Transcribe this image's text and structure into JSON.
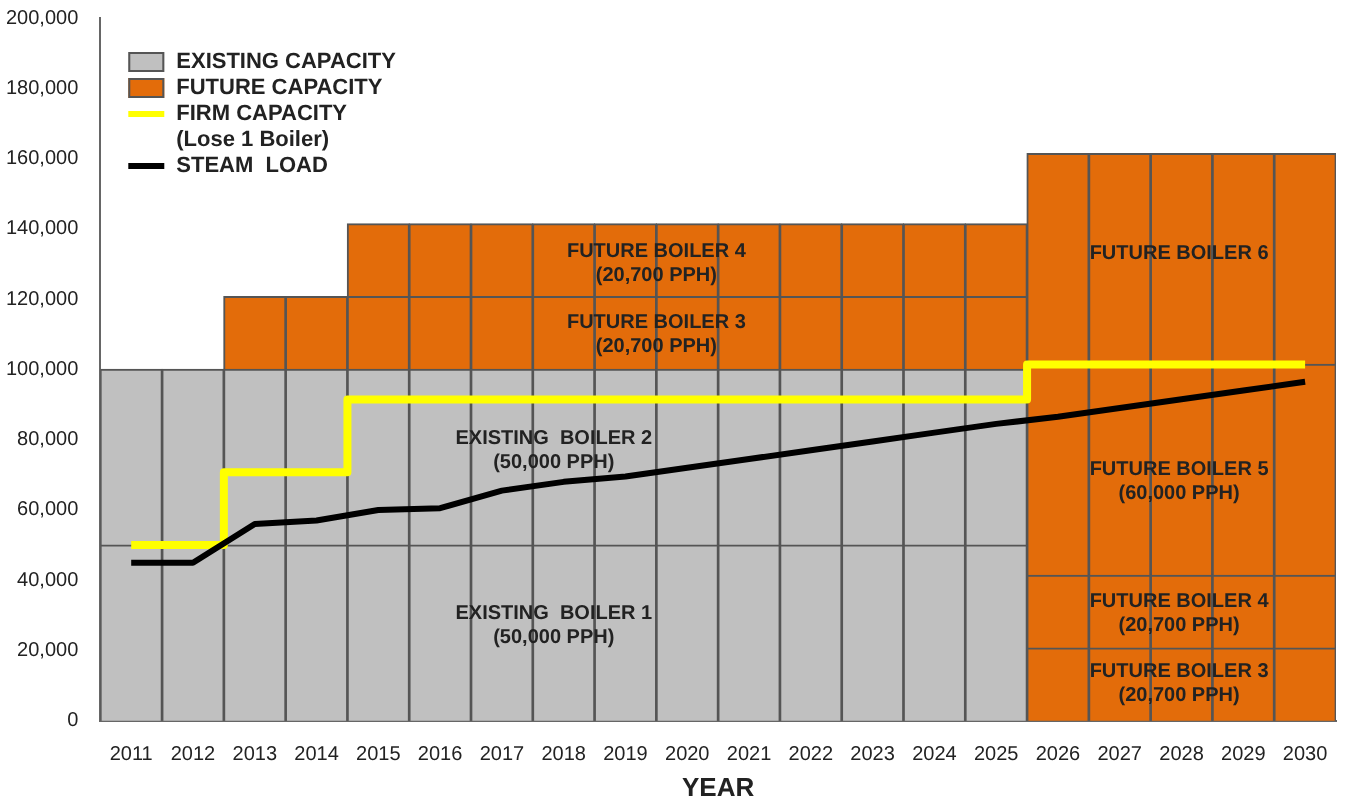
{
  "chart_data": {
    "type": "bar",
    "stacked": true,
    "xlabel": "YEAR",
    "legend": "top left",
    "categories": [
      "2011",
      "2012",
      "2013",
      "2014",
      "2015",
      "2016",
      "2017",
      "2018",
      "2019",
      "2020",
      "2021",
      "2022",
      "2023",
      "2024",
      "2025",
      "2026",
      "2027",
      "2028",
      "2029",
      "2030"
    ],
    "ylim": [
      0,
      200000
    ],
    "yticks": [
      {
        "value": 0,
        "label": "0"
      },
      {
        "value": 20000,
        "label": "20,000"
      },
      {
        "value": 40000,
        "label": "40,000"
      },
      {
        "value": 60000,
        "label": "60,000"
      },
      {
        "value": 80000,
        "label": "80,000"
      },
      {
        "value": 100000,
        "label": "100,000"
      },
      {
        "value": 120000,
        "label": "120,000"
      },
      {
        "value": 140000,
        "label": "140,000"
      },
      {
        "value": 160000,
        "label": "160,000"
      },
      {
        "value": 180000,
        "label": "180,000"
      },
      {
        "value": 200000,
        "label": "200,000"
      }
    ],
    "series": [
      {
        "name": "EXISTING CAPACITY",
        "color": "#c0c0c0",
        "values": [
          50000,
          50000,
          50000,
          50000,
          50000,
          50000,
          50000,
          50000,
          50000,
          50000,
          50000,
          50000,
          50000,
          50000,
          50000,
          null,
          null,
          null,
          null,
          null
        ]
      },
      {
        "color": "#c0c0c0",
        "values": [
          50000,
          50000,
          50000,
          50000,
          50000,
          50000,
          50000,
          50000,
          50000,
          50000,
          50000,
          50000,
          50000,
          50000,
          50000,
          null,
          null,
          null,
          null,
          null
        ]
      },
      {
        "name": "FUTURE CAPACITY",
        "color": "#e36c0a",
        "values": [
          null,
          null,
          20700,
          20700,
          20700,
          20700,
          20700,
          20700,
          20700,
          20700,
          20700,
          20700,
          20700,
          20700,
          20700,
          20700,
          20700,
          20700,
          20700,
          20700
        ]
      },
      {
        "color": "#e36c0a",
        "values": [
          null,
          null,
          null,
          null,
          20700,
          20700,
          20700,
          20700,
          20700,
          20700,
          20700,
          20700,
          20700,
          20700,
          20700,
          20700,
          20700,
          20700,
          20700,
          20700
        ]
      },
      {
        "color": "#e36c0a",
        "values": [
          null,
          null,
          null,
          null,
          null,
          null,
          null,
          null,
          null,
          null,
          null,
          null,
          null,
          null,
          null,
          60000,
          60000,
          60000,
          60000,
          60000
        ]
      },
      {
        "color": "#e36c0a",
        "values": [
          null,
          null,
          null,
          null,
          null,
          null,
          null,
          null,
          null,
          null,
          null,
          null,
          null,
          null,
          null,
          60000,
          60000,
          60000,
          60000,
          60000
        ]
      },
      {
        "name": "FIRM CAPACITY\n(Lose 1 Boiler)",
        "type": "step",
        "color": "#ffff00",
        "values": [
          50000,
          50000,
          70700,
          70700,
          91400,
          91400,
          91400,
          91400,
          91400,
          91400,
          91400,
          91400,
          91400,
          91400,
          91400,
          101400,
          101400,
          101400,
          101400,
          101400
        ]
      },
      {
        "name": "STEAM  LOAD",
        "type": "line",
        "color": "#000000",
        "values": [
          45000,
          45000,
          56000,
          57000,
          60000,
          60500,
          65500,
          68000,
          69500,
          72000,
          74500,
          77000,
          79500,
          82000,
          84500,
          86500,
          89000,
          91500,
          94000,
          96500
        ]
      }
    ],
    "annotations": [
      "EXISTING  BOILER 1\n(50,000 PPH)",
      "EXISTING  BOILER 2\n(50,000 PPH)",
      "FUTURE BOILER 3\n(20,700 PPH)",
      "FUTURE BOILER 4\n(20,700 PPH)",
      "FUTURE BOILER 6",
      "FUTURE BOILER 5\n(60,000 PPH)",
      "FUTURE BOILER 4\n(20,700 PPH)",
      "FUTURE BOILER 3\n(20,700 PPH)"
    ]
  }
}
